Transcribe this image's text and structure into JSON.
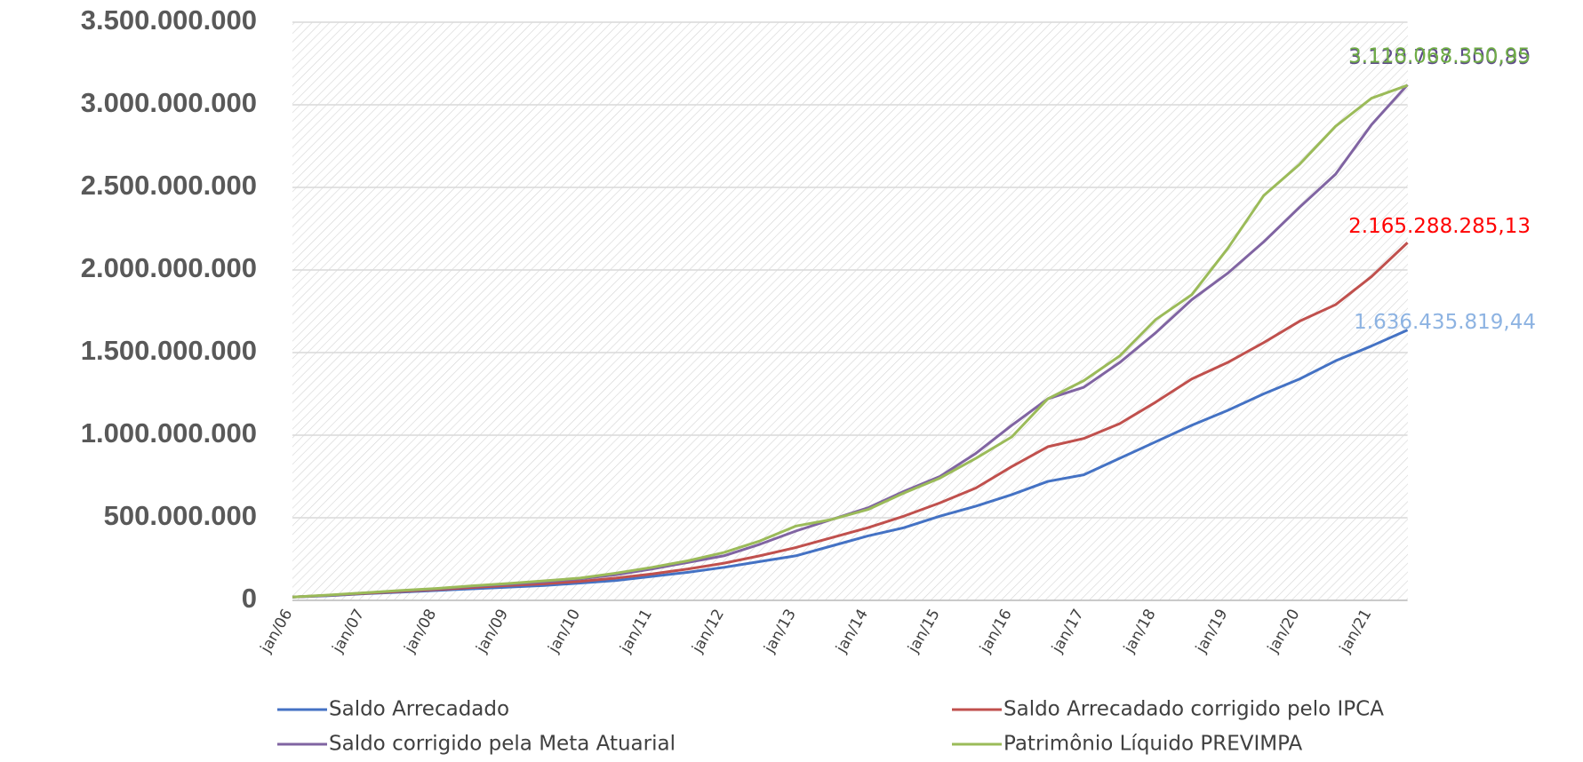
{
  "chart_data": {
    "type": "line",
    "categories": [
      "jan/06",
      null,
      "jan/07",
      null,
      "jan/08",
      null,
      "jan/09",
      null,
      "jan/10",
      null,
      "jan/11",
      null,
      "jan/12",
      null,
      "jan/13",
      null,
      "jan/14",
      null,
      "jan/15",
      null,
      "jan/16",
      null,
      "jan/17",
      null,
      "jan/18",
      null,
      "jan/19",
      null,
      "jan/20",
      null,
      "jan/21",
      null
    ],
    "ylim": [
      0,
      3500000000
    ],
    "yticks": [
      {
        "value": 0,
        "label": "0"
      },
      {
        "value": 500000000,
        "label": "500.000.000"
      },
      {
        "value": 1000000000,
        "label": "1.000.000.000"
      },
      {
        "value": 1500000000,
        "label": "1.500.000.000"
      },
      {
        "value": 2000000000,
        "label": "2.000.000.000"
      },
      {
        "value": 2500000000,
        "label": "2.500.000.000"
      },
      {
        "value": 3000000000,
        "label": "3.000.000.000"
      },
      {
        "value": 3500000000,
        "label": "3.500.000.000"
      }
    ],
    "grid": true,
    "series": [
      {
        "name": "Saldo Arrecadado",
        "color": "#4472c4",
        "label_color": "#8db3e2",
        "values": [
          20000000,
          28000000,
          40000000,
          50000000,
          60000000,
          70000000,
          80000000,
          90000000,
          105000000,
          120000000,
          145000000,
          170000000,
          200000000,
          235000000,
          270000000,
          330000000,
          390000000,
          440000000,
          510000000,
          570000000,
          640000000,
          720000000,
          760000000,
          860000000,
          960000000,
          1060000000,
          1150000000,
          1250000000,
          1340000000,
          1450000000,
          1540000000,
          1636435819.44
        ],
        "value_labels": [
          null,
          null,
          null,
          null,
          null,
          null,
          null,
          null,
          null,
          null,
          null,
          null,
          null,
          null,
          null,
          null,
          null,
          null,
          null,
          null,
          null,
          null,
          null,
          null,
          null,
          null,
          null,
          null,
          null,
          null,
          null,
          "1.636.435.819,44"
        ]
      },
      {
        "name": "Saldo Arrecadado corrigido pelo IPCA",
        "color": "#c0504d",
        "label_color": "#ff0000",
        "values": [
          20000000,
          30000000,
          42000000,
          54000000,
          65000000,
          78000000,
          90000000,
          100000000,
          115000000,
          135000000,
          160000000,
          190000000,
          225000000,
          270000000,
          320000000,
          380000000,
          440000000,
          510000000,
          590000000,
          680000000,
          810000000,
          930000000,
          980000000,
          1070000000,
          1200000000,
          1340000000,
          1440000000,
          1560000000,
          1690000000,
          1790000000,
          1960000000,
          2165288285.13
        ],
        "value_labels": [
          null,
          null,
          null,
          null,
          null,
          null,
          null,
          null,
          null,
          null,
          null,
          null,
          null,
          null,
          null,
          null,
          null,
          null,
          null,
          null,
          null,
          null,
          null,
          null,
          null,
          null,
          null,
          null,
          null,
          null,
          null,
          "2.165.288.285,13"
        ]
      },
      {
        "name": "Saldo corrigido pela Meta Atuarial",
        "color": "#8064a2",
        "label_color": "#5f4b8b",
        "values": [
          20000000,
          30000000,
          45000000,
          58000000,
          70000000,
          85000000,
          98000000,
          112000000,
          130000000,
          155000000,
          190000000,
          230000000,
          270000000,
          340000000,
          420000000,
          490000000,
          560000000,
          660000000,
          750000000,
          890000000,
          1060000000,
          1220000000,
          1290000000,
          1440000000,
          1620000000,
          1820000000,
          1980000000,
          2170000000,
          2380000000,
          2580000000,
          2880000000,
          3120737500.89
        ],
        "value_labels": [
          null,
          null,
          null,
          null,
          null,
          null,
          null,
          null,
          null,
          null,
          null,
          null,
          null,
          null,
          null,
          null,
          null,
          null,
          null,
          null,
          null,
          null,
          null,
          null,
          null,
          null,
          null,
          null,
          null,
          null,
          null,
          "3.120.737.500,89"
        ]
      },
      {
        "name": "Patrimônio Líquido PREVIMPA",
        "color": "#9bbb59",
        "label_color": "#70ad47",
        "values": [
          20000000,
          32000000,
          46000000,
          60000000,
          72000000,
          88000000,
          102000000,
          118000000,
          135000000,
          165000000,
          200000000,
          240000000,
          290000000,
          360000000,
          450000000,
          490000000,
          550000000,
          650000000,
          740000000,
          860000000,
          990000000,
          1220000000,
          1330000000,
          1480000000,
          1700000000,
          1850000000,
          2130000000,
          2450000000,
          2640000000,
          2870000000,
          3040000000,
          3118068350.95
        ],
        "value_labels": [
          null,
          null,
          null,
          null,
          null,
          null,
          null,
          null,
          null,
          null,
          null,
          null,
          null,
          null,
          null,
          null,
          null,
          null,
          null,
          null,
          null,
          null,
          null,
          null,
          null,
          null,
          null,
          null,
          null,
          null,
          null,
          "3.118.068.350,95"
        ]
      }
    ]
  }
}
